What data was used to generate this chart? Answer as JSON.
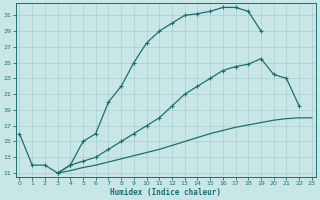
{
  "xlabel": "Humidex (Indice chaleur)",
  "bg_color": "#c8e6e6",
  "grid_color": "#aacfcf",
  "line_color": "#1a7070",
  "xlim": [
    -0.3,
    23.3
  ],
  "ylim": [
    10.5,
    32.5
  ],
  "xticks": [
    0,
    1,
    2,
    3,
    4,
    5,
    6,
    7,
    8,
    9,
    10,
    11,
    12,
    13,
    14,
    15,
    16,
    17,
    18,
    19,
    20,
    21,
    22,
    23
  ],
  "yticks": [
    11,
    13,
    15,
    17,
    19,
    21,
    23,
    25,
    27,
    29,
    31
  ],
  "curve1_x": [
    0,
    1,
    2,
    3,
    4,
    5,
    6,
    7,
    8,
    9,
    10,
    11,
    12,
    13,
    14,
    15,
    16,
    17,
    18,
    19
  ],
  "curve1_y": [
    16,
    12,
    12,
    11,
    12,
    15,
    16,
    20,
    22,
    25,
    27.5,
    29,
    30,
    31,
    31.2,
    31.5,
    32,
    32,
    31.5,
    29
  ],
  "curve2_x": [
    3,
    4,
    5,
    6,
    7,
    8,
    9,
    10,
    11,
    12,
    13,
    14,
    15,
    16,
    17,
    18,
    19,
    20,
    21,
    22
  ],
  "curve2_y": [
    11,
    12,
    12.5,
    13,
    14,
    15,
    16,
    17,
    18,
    19.5,
    21,
    22,
    23,
    24,
    24.5,
    24.8,
    25.5,
    23.5,
    23,
    19.5
  ],
  "curve3_x": [
    3,
    4,
    5,
    6,
    7,
    8,
    9,
    10,
    11,
    12,
    13,
    14,
    15,
    16,
    17,
    18,
    19,
    20,
    21,
    22,
    23
  ],
  "curve3_y": [
    11,
    11.3,
    11.7,
    12.0,
    12.4,
    12.8,
    13.2,
    13.6,
    14.0,
    14.5,
    15.0,
    15.5,
    16.0,
    16.4,
    16.8,
    17.1,
    17.4,
    17.7,
    17.9,
    18.0,
    18.0
  ]
}
